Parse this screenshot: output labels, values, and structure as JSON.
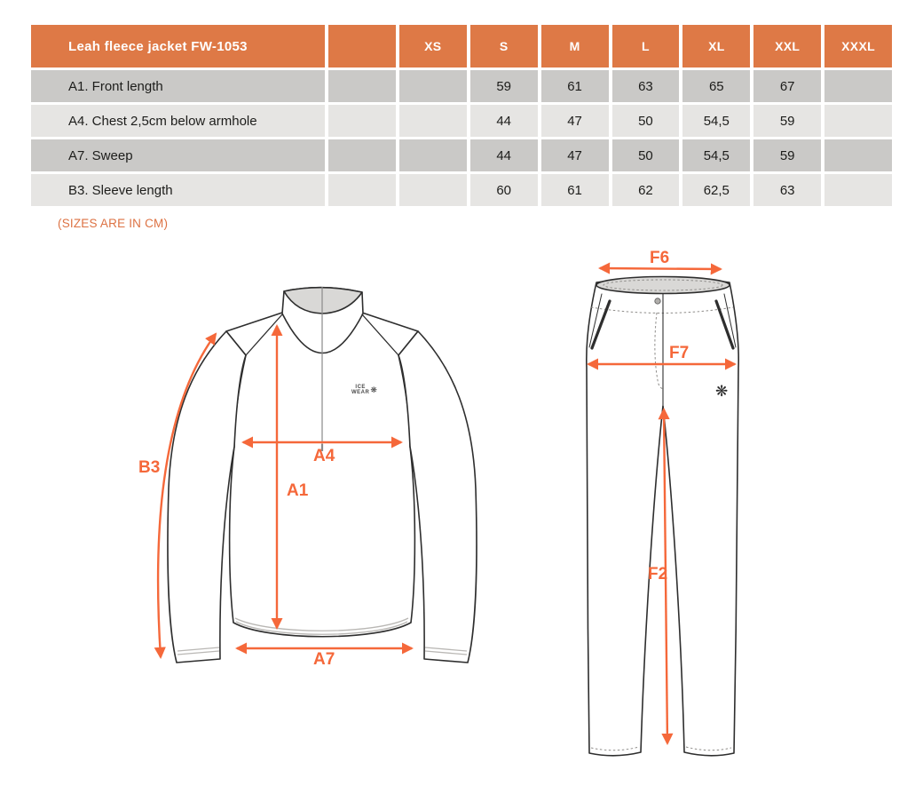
{
  "size_table": {
    "title": "Leah fleece jacket FW-1053",
    "size_headers": [
      "",
      "XS",
      "S",
      "M",
      "L",
      "XL",
      "XXL",
      "XXXL"
    ],
    "rows": [
      {
        "label": "A1. Front length",
        "values": [
          "",
          "",
          "59",
          "61",
          "63",
          "65",
          "67",
          ""
        ]
      },
      {
        "label": "A4. Chest 2,5cm below armhole",
        "values": [
          "",
          "",
          "44",
          "47",
          "50",
          "54,5",
          "59",
          ""
        ]
      },
      {
        "label": "A7. Sweep",
        "values": [
          "",
          "",
          "44",
          "47",
          "50",
          "54,5",
          "59",
          ""
        ]
      },
      {
        "label": "B3. Sleeve length",
        "values": [
          "",
          "",
          "60",
          "61",
          "62",
          "62,5",
          "63",
          ""
        ]
      }
    ]
  },
  "note": "(SIZES ARE IN CM)",
  "jacket_diagram": {
    "measure_labels": {
      "b3": "B3",
      "a4": "A4",
      "a1": "A1",
      "a7": "A7"
    },
    "logo": {
      "line1": "ICE",
      "line2": "WEAR",
      "icon": "❋"
    }
  },
  "pants_diagram": {
    "measure_labels": {
      "f6": "F6",
      "f7": "F7",
      "f2": "F2"
    },
    "logo_icon": "❋"
  },
  "colors": {
    "header_orange": "#de7946",
    "arrow_orange": "#f5683a",
    "row_dark": "#cac9c7",
    "row_light": "#e6e5e3"
  }
}
